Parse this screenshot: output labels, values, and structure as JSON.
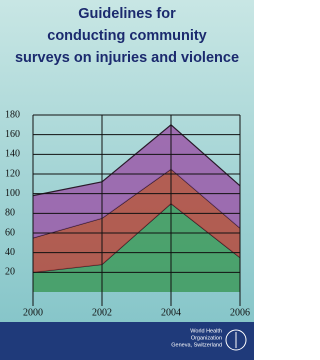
{
  "cover": {
    "title_lines": [
      "Guidelines for",
      "conducting community",
      "surveys on injuries and violence"
    ]
  },
  "publisher": {
    "lines": [
      "World Health",
      "Organization",
      "Geneva, Switzerland"
    ]
  },
  "chart_data": {
    "type": "area",
    "stacked": true,
    "x": [
      2000,
      2002,
      2004,
      2006
    ],
    "xlim": [
      2000,
      2006
    ],
    "xticks": [
      2000,
      2002,
      2004,
      2006
    ],
    "ylim": [
      0,
      180
    ],
    "yticks": [
      20,
      40,
      60,
      80,
      100,
      120,
      140,
      160,
      180
    ],
    "grid": true,
    "series": [
      {
        "color": "#3e9a5c",
        "values": [
          20,
          28,
          90,
          35
        ]
      },
      {
        "color": "#b5493c",
        "values": [
          35,
          47,
          35,
          30
        ]
      },
      {
        "color": "#9b5aa9",
        "values": [
          43,
          37,
          45,
          43
        ]
      }
    ]
  }
}
